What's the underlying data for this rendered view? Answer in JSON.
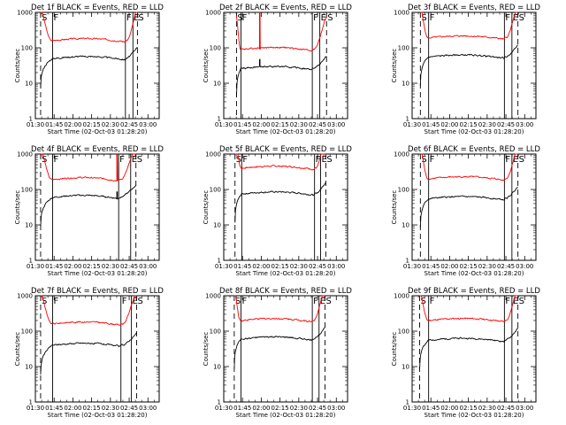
{
  "chart_data": {
    "type": "line",
    "layout": "3x3 grid of detector panels",
    "x_tick_labels": [
      "01:30",
      "01:45",
      "02:00",
      "02:15",
      "02:30",
      "02:45",
      "03:00"
    ],
    "x_ticks_hours": [
      1.5,
      1.75,
      2.0,
      2.25,
      2.5,
      2.75,
      3.0
    ],
    "xlim_hours": [
      1.5,
      3.15
    ],
    "xlabel": "Start Time (02-Oct-03 01:28:20)",
    "ylabel": "Counts/sec",
    "yscale": "log",
    "ylim": [
      1,
      1000
    ],
    "y_tick_labels": [
      "1",
      "10",
      "100",
      "1000"
    ],
    "series_colors": {
      "Events": "#000000",
      "LLD": "#ff0000"
    },
    "marker_labels": {
      "start": "S",
      "flat_start": "F",
      "flat_end": "F",
      "end": "E",
      "saa": "S"
    },
    "panels": [
      {
        "title": "Det 1f BLACK = Events, RED = LLD",
        "markers_h": {
          "S": 1.57,
          "F1": 1.73,
          "F2": 2.7,
          "E": 2.8,
          "S2": 2.86
        },
        "events_base": 50,
        "lld_base": 160,
        "spike": null
      },
      {
        "title": "Det 2f BLACK = Events, RED = LLD",
        "markers_h": {
          "S": 1.67,
          "F1": 1.73,
          "F2": 2.68,
          "E": 2.78,
          "S2": 2.87
        },
        "events_base": 26,
        "lld_base": 90,
        "spike": 1.98
      },
      {
        "title": "Det 3f BLACK = Events, RED = LLD",
        "markers_h": {
          "S": 1.61,
          "F1": 1.72,
          "F2": 2.73,
          "E": 2.83,
          "S2": 2.91
        },
        "events_base": 55,
        "lld_base": 190,
        "spike": null
      },
      {
        "title": "Det 4f BLACK = Events, RED = LLD",
        "markers_h": {
          "S": 1.57,
          "F1": 1.73,
          "F2": 2.61,
          "E": 2.77,
          "S2": 2.84
        },
        "events_base": 60,
        "lld_base": 190,
        "spike": 2.59
      },
      {
        "title": "Det 5f BLACK = Events, RED = LLD",
        "markers_h": {
          "S": 1.65,
          "F1": 1.74,
          "F2": 2.71,
          "E": 2.79,
          "S2": 2.86
        },
        "events_base": 75,
        "lld_base": 400,
        "spike": null
      },
      {
        "title": "Det 6f BLACK = Events, RED = LLD",
        "markers_h": {
          "S": 1.61,
          "F1": 1.72,
          "F2": 2.73,
          "E": 2.83,
          "S2": 2.91
        },
        "events_base": 55,
        "lld_base": 200,
        "spike": null
      },
      {
        "title": "Det 7f BLACK = Events, RED = LLD",
        "markers_h": {
          "S": 1.57,
          "F1": 1.73,
          "F2": 2.64,
          "E": 2.78,
          "S2": 2.85
        },
        "events_base": 40,
        "lld_base": 160,
        "spike": null
      },
      {
        "title": "Det 8f BLACK = Events, RED = LLD",
        "markers_h": {
          "S": 1.64,
          "F1": 1.73,
          "F2": 2.68,
          "E": 2.77,
          "S2": 2.85
        },
        "events_base": 60,
        "lld_base": 200,
        "spike": null
      },
      {
        "title": "Det 9f BLACK = Events, RED = LLD",
        "markers_h": {
          "S": 1.6,
          "F1": 1.72,
          "F2": 2.73,
          "E": 2.83,
          "S2": 2.91
        },
        "events_base": 55,
        "lld_base": 200,
        "spike": null
      }
    ]
  }
}
